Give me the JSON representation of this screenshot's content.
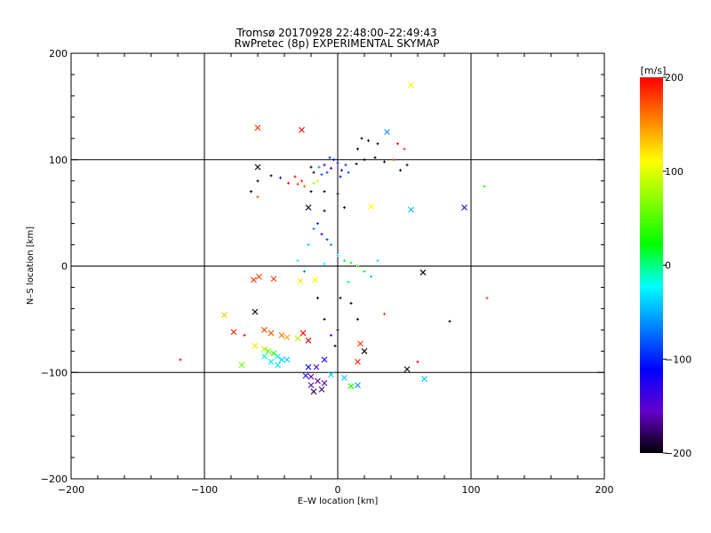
{
  "chart_data": {
    "type": "scatter",
    "title": "Tromsø 20170928 22:48:00–22:49:43",
    "subtitle": "RwPretec (8p) EXPERIMENTAL SKYMAP",
    "xlabel": "E–W location [km]",
    "ylabel": "N–S location [km]",
    "xlim": [
      -200,
      200
    ],
    "ylim": [
      -200,
      200
    ],
    "xticks": [
      "−200",
      "−100",
      "0",
      "100",
      "200"
    ],
    "yticks": [
      "−200",
      "−100",
      "0",
      "100",
      "200"
    ],
    "grid_lines_at": [
      -100,
      0,
      100
    ],
    "colorbar": {
      "label": "[m/s]",
      "range": [
        -200,
        200
      ],
      "ticks": [
        "200",
        "100",
        "0",
        "−100",
        "−200"
      ],
      "colors": [
        "#ff0000",
        "#ff8000",
        "#ffff00",
        "#80ff00",
        "#00ff00",
        "#00ffff",
        "#0080ff",
        "#0000ff",
        "#6600cc",
        "#000000"
      ]
    },
    "series": [
      {
        "marker": "x",
        "points": [
          [
            -60,
            130,
            180
          ],
          [
            37,
            126,
            -60
          ],
          [
            55,
            170,
            110
          ],
          [
            -27,
            128,
            200
          ],
          [
            -60,
            93,
            -200
          ],
          [
            -22,
            55,
            -200
          ],
          [
            25,
            56,
            110
          ],
          [
            95,
            55,
            -130
          ],
          [
            55,
            53,
            -50
          ],
          [
            -63,
            -13,
            180
          ],
          [
            -59,
            -10,
            180
          ],
          [
            -48,
            -12,
            180
          ],
          [
            -28,
            -14,
            120
          ],
          [
            -17,
            -13,
            110
          ],
          [
            64,
            -6,
            -200
          ],
          [
            -85,
            -46,
            130
          ],
          [
            -62,
            -43,
            -200
          ],
          [
            -78,
            -62,
            190
          ],
          [
            -55,
            -60,
            180
          ],
          [
            -50,
            -63,
            170
          ],
          [
            -42,
            -65,
            160
          ],
          [
            -38,
            -67,
            140
          ],
          [
            -30,
            -68,
            80
          ],
          [
            -22,
            -70,
            200
          ],
          [
            -62,
            -75,
            120
          ],
          [
            -55,
            -78,
            80
          ],
          [
            -52,
            -80,
            60
          ],
          [
            -48,
            -82,
            40
          ],
          [
            -45,
            -85,
            -30
          ],
          [
            -42,
            -88,
            -40
          ],
          [
            -55,
            -85,
            -10
          ],
          [
            -50,
            -90,
            -30
          ],
          [
            -38,
            -88,
            -40
          ],
          [
            -45,
            -93,
            -35
          ],
          [
            -72,
            -93,
            60
          ],
          [
            -24,
            -103,
            -130
          ],
          [
            -20,
            -104,
            -160
          ],
          [
            -15,
            -108,
            -170
          ],
          [
            -20,
            -112,
            -160
          ],
          [
            -18,
            -118,
            -180
          ],
          [
            -12,
            -116,
            -170
          ],
          [
            -10,
            -110,
            -160
          ],
          [
            -16,
            -95,
            -140
          ],
          [
            -22,
            -95,
            -110
          ],
          [
            -10,
            -88,
            -120
          ],
          [
            -5,
            -102,
            -40
          ],
          [
            5,
            -105,
            -40
          ],
          [
            10,
            -113,
            30
          ],
          [
            15,
            -112,
            -60
          ],
          [
            20,
            -80,
            -200
          ],
          [
            17,
            -73,
            180
          ],
          [
            15,
            -90,
            190
          ],
          [
            52,
            -97,
            -200
          ],
          [
            65,
            -106,
            -40
          ],
          [
            -26,
            -63,
            200
          ]
        ]
      },
      {
        "marker": "+",
        "points": [
          [
            -10,
            95,
            -110
          ],
          [
            -5,
            92,
            -130
          ],
          [
            0,
            97,
            -100
          ],
          [
            -8,
            88,
            -90
          ],
          [
            3,
            90,
            -120
          ],
          [
            -12,
            86,
            -80
          ],
          [
            6,
            95,
            -100
          ],
          [
            -3,
            100,
            -110
          ],
          [
            -14,
            93,
            -60
          ],
          [
            8,
            88,
            -90
          ],
          [
            -6,
            102,
            -90
          ],
          [
            2,
            84,
            -110
          ],
          [
            -18,
            88,
            -200
          ],
          [
            -20,
            93,
            -200
          ],
          [
            14,
            96,
            -200
          ],
          [
            20,
            100,
            -200
          ],
          [
            28,
            102,
            -200
          ],
          [
            15,
            110,
            -200
          ],
          [
            35,
            98,
            -200
          ],
          [
            42,
            100,
            180
          ],
          [
            -32,
            84,
            200
          ],
          [
            -27,
            80,
            190
          ],
          [
            -37,
            78,
            200
          ],
          [
            -25,
            75,
            170
          ],
          [
            -30,
            77,
            180
          ],
          [
            -20,
            70,
            -200
          ],
          [
            -10,
            70,
            -200
          ],
          [
            0,
            68,
            -200
          ],
          [
            -15,
            80,
            90
          ],
          [
            -18,
            78,
            70
          ],
          [
            -50,
            85,
            -200
          ],
          [
            -60,
            80,
            -200
          ],
          [
            -65,
            70,
            -200
          ],
          [
            5,
            55,
            -200
          ],
          [
            -10,
            52,
            -200
          ],
          [
            -15,
            40,
            -100
          ],
          [
            -12,
            30,
            -120
          ],
          [
            -8,
            25,
            -90
          ],
          [
            -5,
            20,
            -60
          ],
          [
            -18,
            35,
            -70
          ],
          [
            -22,
            20,
            -40
          ],
          [
            0,
            10,
            -30
          ],
          [
            5,
            5,
            10
          ],
          [
            10,
            3,
            30
          ],
          [
            15,
            0,
            40
          ],
          [
            -10,
            2,
            -30
          ],
          [
            20,
            -5,
            20
          ],
          [
            25,
            -10,
            -40
          ],
          [
            8,
            -15,
            10
          ],
          [
            30,
            5,
            -30
          ],
          [
            -30,
            5,
            -10
          ],
          [
            -25,
            -5,
            -60
          ],
          [
            2,
            -30,
            -200
          ],
          [
            10,
            -35,
            -200
          ],
          [
            -15,
            -30,
            -200
          ],
          [
            15,
            -50,
            -200
          ],
          [
            -10,
            -50,
            -200
          ],
          [
            -5,
            -65,
            -150
          ],
          [
            0,
            -60,
            -200
          ],
          [
            -2,
            -75,
            -200
          ],
          [
            35,
            -45,
            180
          ],
          [
            -70,
            -65,
            200
          ],
          [
            -118,
            -88,
            200
          ],
          [
            112,
            -30,
            180
          ],
          [
            110,
            75,
            30
          ],
          [
            60,
            -90,
            200
          ],
          [
            84,
            -52,
            -200
          ],
          [
            47,
            90,
            -200
          ],
          [
            52,
            95,
            -200
          ],
          [
            -60,
            65,
            170
          ],
          [
            -43,
            83,
            -120
          ],
          [
            18,
            120,
            -200
          ],
          [
            23,
            118,
            -200
          ],
          [
            30,
            115,
            -200
          ],
          [
            45,
            115,
            200
          ],
          [
            50,
            110,
            180
          ]
        ]
      }
    ]
  }
}
